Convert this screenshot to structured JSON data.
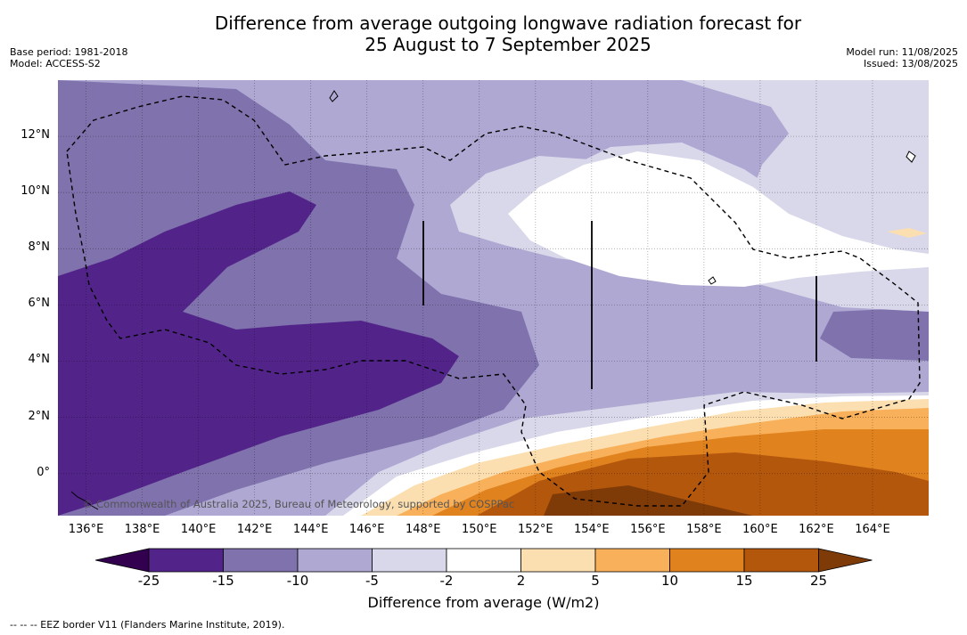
{
  "title": {
    "line1": "Difference from average outgoing longwave radiation forecast for",
    "line2": "25 August to 7 September 2025"
  },
  "meta_left": {
    "base_period": "Base period: 1981-2018",
    "model": "Model: ACCESS-S2"
  },
  "meta_right": {
    "model_run": "Model run: 11/08/2025",
    "issued": "Issued: 13/08/2025"
  },
  "map": {
    "lon_range": [
      135,
      166
    ],
    "lat_range": [
      -1.5,
      14
    ],
    "x_ticks": [
      "136°E",
      "138°E",
      "140°E",
      "142°E",
      "144°E",
      "146°E",
      "148°E",
      "150°E",
      "152°E",
      "154°E",
      "156°E",
      "158°E",
      "160°E",
      "162°E",
      "164°E"
    ],
    "x_tick_values": [
      136,
      138,
      140,
      142,
      144,
      146,
      148,
      150,
      152,
      154,
      156,
      158,
      160,
      162,
      164
    ],
    "y_ticks": [
      "12°N",
      "10°N",
      "8°N",
      "6°N",
      "4°N",
      "2°N",
      "0°"
    ],
    "y_tick_values": [
      12,
      10,
      8,
      6,
      4,
      2,
      0
    ],
    "gridlines": true,
    "watermark": "© Commonwealth of Australia 2025, Bureau of Meteorology, supported by COSPPac"
  },
  "colorbar": {
    "ticks": [
      "-25",
      "-15",
      "-10",
      "-5",
      "-2",
      "2",
      "5",
      "10",
      "15",
      "25"
    ],
    "colors": [
      "#33004f",
      "#52248a",
      "#7f72ad",
      "#aea8d2",
      "#d8d8ea",
      "#ffffff",
      "#fcdfb0",
      "#f8b15a",
      "#e0821e",
      "#b3570d",
      "#7e3b08"
    ],
    "label": "Difference from average (W/m2)"
  },
  "footnote": "--  --  -- EEZ border V11 (Flanders Marine Institute, 2019)."
}
